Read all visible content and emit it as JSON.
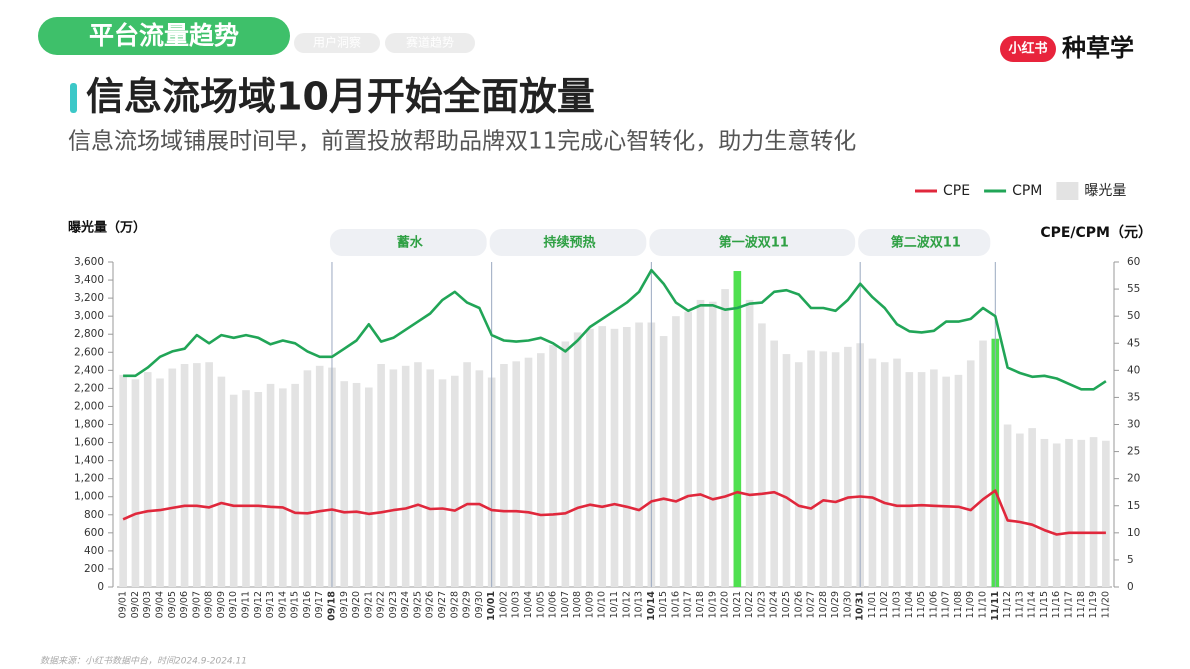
{
  "header": {
    "tab_active": "平台流量趋势",
    "tabs": [
      "用户洞察",
      "赛道趋势"
    ],
    "brand_badge": "小红书",
    "brand_name": "种草学",
    "title": "信息流场域10月开始全面放量",
    "subtitle": "信息流场域铺展时间早，前置投放帮助品牌双11完成心智转化，助力生意转化"
  },
  "chart_data": {
    "type": "bar-line",
    "y_label": "曝光量（万）",
    "y2_label": "CPE/CPM（元）",
    "categories": [
      "09/01",
      "09/02",
      "09/03",
      "09/04",
      "09/05",
      "09/06",
      "09/07",
      "09/08",
      "09/09",
      "09/10",
      "09/11",
      "09/12",
      "09/13",
      "09/14",
      "09/15",
      "09/16",
      "09/17",
      "09/18",
      "09/19",
      "09/20",
      "09/21",
      "09/22",
      "09/23",
      "09/24",
      "09/25",
      "09/26",
      "09/27",
      "09/28",
      "09/29",
      "09/30",
      "10/01",
      "10/02",
      "10/03",
      "10/04",
      "10/05",
      "10/06",
      "10/07",
      "10/08",
      "10/09",
      "10/10",
      "10/11",
      "10/12",
      "10/13",
      "10/14",
      "10/15",
      "10/16",
      "10/17",
      "10/18",
      "10/19",
      "10/20",
      "10/21",
      "10/22",
      "10/23",
      "10/24",
      "10/25",
      "10/26",
      "10/27",
      "10/28",
      "10/29",
      "10/30",
      "10/31",
      "11/01",
      "11/02",
      "11/03",
      "11/04",
      "11/05",
      "11/06",
      "11/07",
      "11/08",
      "11/09",
      "11/10",
      "11/11",
      "11/12",
      "11/13",
      "11/14",
      "11/15",
      "11/16",
      "11/17",
      "11/18",
      "11/19",
      "11/20"
    ],
    "series": [
      {
        "name": "曝光量",
        "type": "bar",
        "color": "#e3e3e3",
        "values": [
          2350,
          2300,
          2380,
          2310,
          2420,
          2470,
          2480,
          2490,
          2330,
          2130,
          2180,
          2160,
          2250,
          2200,
          2250,
          2400,
          2450,
          2430,
          2280,
          2260,
          2210,
          2470,
          2410,
          2450,
          2490,
          2410,
          2300,
          2340,
          2490,
          2400,
          2320,
          2470,
          2500,
          2540,
          2590,
          2680,
          2720,
          2820,
          2860,
          2890,
          2860,
          2880,
          2930,
          2930,
          2780,
          3000,
          3050,
          3180,
          3160,
          3300,
          3500,
          3180,
          2920,
          2730,
          2580,
          2490,
          2620,
          2610,
          2600,
          2660,
          2700,
          2530,
          2490,
          2530,
          2380,
          2380,
          2410,
          2330,
          2350,
          2510,
          2730,
          2750,
          1800,
          1700,
          1760,
          1640,
          1590,
          1640,
          1630,
          1660,
          1620
        ]
      },
      {
        "name": "CPE",
        "type": "line",
        "axis": "y2",
        "color": "#e0283c",
        "values": [
          12.5,
          13.5,
          14,
          14.2,
          14.6,
          15,
          15,
          14.7,
          15.5,
          15,
          15,
          15,
          14.8,
          14.7,
          13.7,
          13.6,
          14,
          14.3,
          13.8,
          13.9,
          13.5,
          13.8,
          14.2,
          14.5,
          15.2,
          14.4,
          14.5,
          14.1,
          15.3,
          15.3,
          14.2,
          14,
          14,
          13.8,
          13.3,
          13.4,
          13.6,
          14.6,
          15.2,
          14.8,
          15.3,
          14.8,
          14.2,
          15.8,
          16.3,
          15.8,
          16.8,
          17.1,
          16.2,
          16.7,
          17.5,
          17,
          17.2,
          17.5,
          16.5,
          15,
          14.5,
          16,
          15.7,
          16.5,
          16.7,
          16.5,
          15.5,
          15,
          15,
          15.1,
          15,
          14.9,
          14.8,
          14.2,
          16.2,
          17.8,
          12.3,
          12,
          11.5,
          10.5,
          9.7,
          10,
          10,
          10,
          10
        ]
      },
      {
        "name": "CPM",
        "type": "line",
        "axis": "y2",
        "color": "#21a557",
        "values": [
          39,
          39,
          40.5,
          42.5,
          43.5,
          44,
          46.5,
          45,
          46.5,
          46,
          46.5,
          46,
          44.8,
          45.5,
          45,
          43.5,
          42.5,
          42.5,
          44,
          45.5,
          48.5,
          45.3,
          46,
          47.5,
          49,
          50.5,
          53,
          54.5,
          52.5,
          51.5,
          46.5,
          45.5,
          45.3,
          45.5,
          46,
          45,
          43.5,
          45.5,
          48,
          49.5,
          51,
          52.5,
          54.5,
          58.5,
          56,
          52.5,
          51,
          52,
          52,
          51.2,
          51.5,
          52.3,
          52.5,
          54.5,
          54.8,
          54,
          51.5,
          51.5,
          51,
          53,
          56,
          53.5,
          51.5,
          48.5,
          47.2,
          47,
          47.3,
          49,
          49,
          49.5,
          51.5,
          50,
          40.5,
          39.5,
          38.8,
          39,
          38.5,
          37.5,
          36.5,
          36.5,
          38
        ]
      }
    ],
    "highlight": {
      "color": "#4fe04f",
      "categories": [
        "10/21",
        "11/11"
      ]
    },
    "markers": [
      "09/18",
      "10/01",
      "10/14",
      "10/31",
      "11/11"
    ],
    "phases": [
      {
        "label": "蓄水",
        "start": "09/18",
        "end": "10/01"
      },
      {
        "label": "持续预热",
        "start": "10/01",
        "end": "10/14"
      },
      {
        "label": "第一波双11",
        "start": "10/14",
        "end": "10/31"
      },
      {
        "label": "第二波双11",
        "start": "10/31",
        "end": "11/11"
      }
    ],
    "ylim": [
      0,
      3600
    ],
    "yticks": [
      0,
      200,
      400,
      600,
      800,
      {
        "value": 1000,
        "label": "1,000"
      },
      {
        "value": 1200,
        "label": "1,200"
      },
      {
        "value": 1400,
        "label": "1,400"
      },
      {
        "value": 1600,
        "label": "1,600"
      },
      {
        "value": 1800,
        "label": "1,800"
      },
      {
        "value": 2000,
        "label": "2,000"
      },
      {
        "value": 2200,
        "label": "2,200"
      },
      {
        "value": 2400,
        "label": "2,400"
      },
      {
        "value": 2600,
        "label": "2,600"
      },
      {
        "value": 2800,
        "label": "2,800"
      },
      {
        "value": 3000,
        "label": "3,000"
      },
      {
        "value": 3200,
        "label": "3,200"
      },
      {
        "value": 3400,
        "label": "3,400"
      },
      {
        "value": 3600,
        "label": "3,600"
      }
    ],
    "y2lim": [
      0,
      60
    ],
    "y2ticks": [
      0,
      5,
      10,
      15,
      20,
      25,
      30,
      35,
      40,
      45,
      50,
      55,
      60
    ]
  },
  "footer": {
    "source": "数据来源：小红书数据中台，时间2024.9-2024.11"
  }
}
